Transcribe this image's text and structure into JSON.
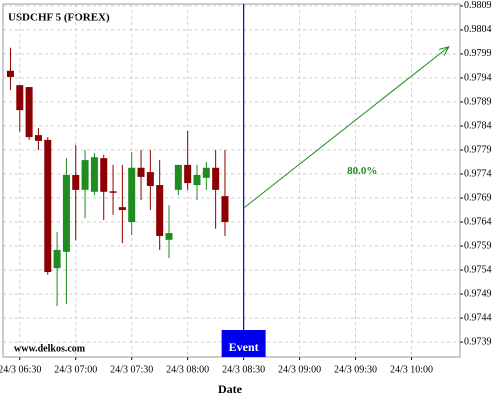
{
  "chart_data": {
    "type": "candlestick",
    "title": "USDCHF 5 (FOREX)",
    "x_label": "Date",
    "watermark": "www.delkos.com",
    "grid": true,
    "xlim": [
      "24/3 06:21",
      "24/3 10:26"
    ],
    "xticks": [
      "24/3 06:30",
      "24/3 07:00",
      "24/3 07:30",
      "24/3 08:00",
      "24/3 08:30",
      "24/3 09:00",
      "24/3 09:30",
      "24/3 10:00"
    ],
    "ylim": [
      0.97359,
      0.98094
    ],
    "yticks": [
      0.9809,
      0.9804,
      0.9799,
      0.9794,
      0.9789,
      0.9784,
      0.9779,
      0.9774,
      0.9769,
      0.9764,
      0.9759,
      0.9754,
      0.9749,
      0.9744,
      0.9739
    ],
    "up_color": "#1e8c1e",
    "down_color": "#8b0000",
    "x": [
      "24/3 06:25",
      "24/3 06:30",
      "24/3 06:35",
      "24/3 06:40",
      "24/3 06:45",
      "24/3 06:50",
      "24/3 06:55",
      "24/3 07:00",
      "24/3 07:05",
      "24/3 07:10",
      "24/3 07:15",
      "24/3 07:20",
      "24/3 07:25",
      "24/3 07:30",
      "24/3 07:35",
      "24/3 07:40",
      "24/3 07:45",
      "24/3 07:50",
      "24/3 07:55",
      "24/3 08:00",
      "24/3 08:05",
      "24/3 08:10",
      "24/3 08:15",
      "24/3 08:20"
    ],
    "open": [
      0.97955,
      0.97925,
      0.97921,
      0.97821,
      0.97811,
      0.97544,
      0.97578,
      0.97738,
      0.97707,
      0.97703,
      0.97773,
      0.97704,
      0.97671,
      0.9764,
      0.97753,
      0.97744,
      0.97717,
      0.97603,
      0.97707,
      0.97759,
      0.97717,
      0.97732,
      0.97753,
      0.97694
    ],
    "high": [
      0.98003,
      0.97925,
      0.97921,
      0.97836,
      0.97817,
      0.97619,
      0.97773,
      0.978,
      0.9779,
      0.97784,
      0.9778,
      0.97759,
      0.97759,
      0.97786,
      0.9779,
      0.9779,
      0.97769,
      0.97675,
      0.97759,
      0.9783,
      0.97759,
      0.97765,
      0.9779,
      0.9779
    ],
    "low": [
      0.97915,
      0.97828,
      0.97811,
      0.9779,
      0.9753,
      0.97465,
      0.97469,
      0.97602,
      0.97648,
      0.97696,
      0.97644,
      0.97655,
      0.97596,
      0.97613,
      0.97686,
      0.97665,
      0.97582,
      0.97565,
      0.97696,
      0.97707,
      0.97686,
      0.97707,
      0.97626,
      0.97611
    ],
    "close": [
      0.97942,
      0.97873,
      0.97817,
      0.97809,
      0.97536,
      0.97582,
      0.97738,
      0.97707,
      0.97769,
      0.97775,
      0.97703,
      0.97702,
      0.97665,
      0.97753,
      0.97734,
      0.97715,
      0.97611,
      0.97617,
      0.97759,
      0.97721,
      0.97738,
      0.97753,
      0.97707,
      0.9764
    ],
    "event": {
      "label": "Event",
      "x": "24/3 08:30",
      "color": "#0000ee"
    },
    "forecast": {
      "label": "80.0%",
      "color": "#1e8c1e",
      "from": [
        "24/3 08:30",
        0.97669
      ],
      "to": [
        "24/3 10:20",
        0.98005
      ]
    }
  }
}
